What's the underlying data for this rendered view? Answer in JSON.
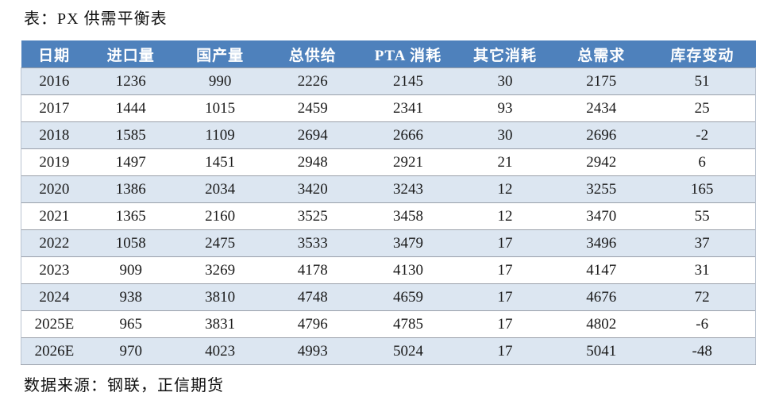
{
  "title": "表：PX 供需平衡表",
  "source": "数据来源：钢联，正信期货",
  "colors": {
    "header_bg": "#4e81bc",
    "header_text": "#ffffff",
    "row_alt_bg": "#dce6f1",
    "row_bg": "#ffffff",
    "negative_text": "#c5414e",
    "body_text": "#1a1a1a",
    "row_divider": "#9aa0aa"
  },
  "chart_data": {
    "type": "table",
    "title": "表：PX 供需平衡表",
    "columns": [
      "日期",
      "进口量",
      "国产量",
      "总供给",
      "PTA 消耗",
      "其它消耗",
      "总需求",
      "库存变动"
    ],
    "rows": [
      [
        "2016",
        "1236",
        "990",
        "2226",
        "2145",
        "30",
        "2175",
        "51"
      ],
      [
        "2017",
        "1444",
        "1015",
        "2459",
        "2341",
        "93",
        "2434",
        "25"
      ],
      [
        "2018",
        "1585",
        "1109",
        "2694",
        "2666",
        "30",
        "2696",
        "-2"
      ],
      [
        "2019",
        "1497",
        "1451",
        "2948",
        "2921",
        "21",
        "2942",
        "6"
      ],
      [
        "2020",
        "1386",
        "2034",
        "3420",
        "3243",
        "12",
        "3255",
        "165"
      ],
      [
        "2021",
        "1365",
        "2160",
        "3525",
        "3458",
        "12",
        "3470",
        "55"
      ],
      [
        "2022",
        "1058",
        "2475",
        "3533",
        "3479",
        "17",
        "3496",
        "37"
      ],
      [
        "2023",
        "909",
        "3269",
        "4178",
        "4130",
        "17",
        "4147",
        "31"
      ],
      [
        "2024",
        "938",
        "3810",
        "4748",
        "4659",
        "17",
        "4676",
        "72"
      ],
      [
        "2025E",
        "965",
        "3831",
        "4796",
        "4785",
        "17",
        "4802",
        "-6"
      ],
      [
        "2026E",
        "970",
        "4023",
        "4993",
        "5024",
        "17",
        "5041",
        "-48"
      ]
    ],
    "column_widths_percent": [
      9,
      11.9,
      12.4,
      12.8,
      13.2,
      13.2,
      13,
      14.5
    ],
    "notes": "negative inventory-change values rendered in red"
  }
}
